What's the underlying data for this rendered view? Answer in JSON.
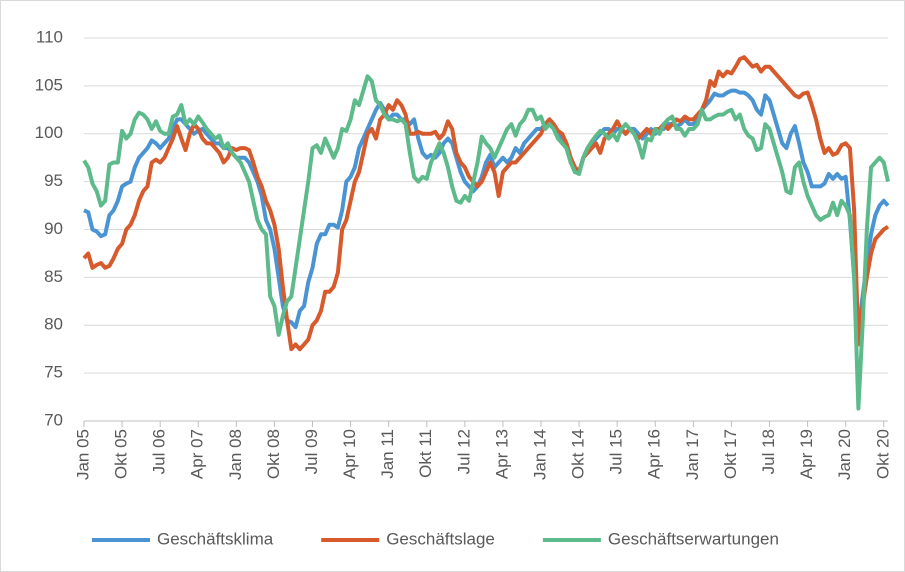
{
  "chart_data": {
    "type": "line",
    "categories": [
      "Jan 05",
      null,
      null,
      null,
      null,
      null,
      null,
      null,
      null,
      "Okt 05",
      null,
      null,
      null,
      null,
      null,
      null,
      null,
      null,
      "Jul 06",
      null,
      null,
      null,
      null,
      null,
      null,
      null,
      null,
      "Apr 07",
      null,
      null,
      null,
      null,
      null,
      null,
      null,
      null,
      "Jan 08",
      null,
      null,
      null,
      null,
      null,
      null,
      null,
      null,
      "Okt 08",
      null,
      null,
      null,
      null,
      null,
      null,
      null,
      null,
      "Jul 09",
      null,
      null,
      null,
      null,
      null,
      null,
      null,
      null,
      "Apr 10",
      null,
      null,
      null,
      null,
      null,
      null,
      null,
      null,
      "Jan 11",
      null,
      null,
      null,
      null,
      null,
      null,
      null,
      null,
      "Okt 11",
      null,
      null,
      null,
      null,
      null,
      null,
      null,
      null,
      "Jul 12",
      null,
      null,
      null,
      null,
      null,
      null,
      null,
      null,
      "Apr 13",
      null,
      null,
      null,
      null,
      null,
      null,
      null,
      null,
      "Jan 14",
      null,
      null,
      null,
      null,
      null,
      null,
      null,
      null,
      "Okt 14",
      null,
      null,
      null,
      null,
      null,
      null,
      null,
      null,
      "Jul 15",
      null,
      null,
      null,
      null,
      null,
      null,
      null,
      null,
      "Apr 16",
      null,
      null,
      null,
      null,
      null,
      null,
      null,
      null,
      "Jan 17",
      null,
      null,
      null,
      null,
      null,
      null,
      null,
      null,
      "Okt 17",
      null,
      null,
      null,
      null,
      null,
      null,
      null,
      null,
      "Jul 18",
      null,
      null,
      null,
      null,
      null,
      null,
      null,
      null,
      "Apr 19",
      null,
      null,
      null,
      null,
      null,
      null,
      null,
      null,
      "Jan 20",
      null,
      null,
      null,
      null,
      null,
      null,
      null,
      null,
      "Okt 20",
      null
    ],
    "series": [
      {
        "name": "Geschäftsklima",
        "color": "#4b94d3",
        "values": [
          92,
          91.8,
          90,
          89.8,
          89.3,
          89.5,
          91.5,
          92,
          93,
          94.5,
          94.8,
          95,
          96.5,
          97.5,
          98,
          98.5,
          99.3,
          99,
          98.5,
          99,
          99.5,
          100.5,
          101.5,
          101.5,
          101,
          100.5,
          100,
          100.3,
          100.5,
          100,
          99.5,
          99,
          99,
          98.5,
          98.5,
          98,
          97.5,
          97.5,
          97.5,
          97,
          96,
          95,
          93.5,
          91,
          90,
          88,
          85,
          82,
          80.5,
          80.3,
          79.8,
          81.5,
          82,
          84.5,
          86,
          88.5,
          89.5,
          89.5,
          90.5,
          90.5,
          90.2,
          92,
          95,
          95.5,
          96.5,
          98.5,
          99.5,
          100.5,
          101.5,
          102.5,
          103.2,
          102.5,
          101.5,
          102,
          102,
          101.5,
          101.5,
          101,
          101.5,
          99.5,
          98,
          97.5,
          97.8,
          97.5,
          98,
          99,
          99.5,
          99,
          97.5,
          96,
          95,
          94.5,
          94,
          94.5,
          95.5,
          97,
          97.8,
          96.5,
          97,
          97.5,
          97,
          97.5,
          98.5,
          98,
          99,
          99.5,
          100,
          100.5,
          100.5,
          101,
          101.5,
          101,
          100,
          99.5,
          99,
          97.5,
          96.5,
          96,
          97.5,
          98.5,
          99,
          99.5,
          100,
          100.5,
          100.5,
          100,
          100.5,
          100.5,
          100,
          100.5,
          100.5,
          100,
          99.5,
          100,
          100.5,
          100,
          100.5,
          100.5,
          101,
          101,
          100.8,
          101,
          101.5,
          101,
          101,
          101.5,
          102.5,
          103,
          103.5,
          104.2,
          104,
          104,
          104.3,
          104.5,
          104.5,
          104.3,
          104.3,
          104,
          103.5,
          102.5,
          102,
          104,
          103.5,
          102,
          100.5,
          99,
          98.5,
          100,
          100.8,
          99,
          97,
          96,
          94.5,
          94.5,
          94.5,
          94.8,
          95.8,
          95.3,
          95.8,
          95.3,
          95.5,
          91,
          85,
          79.5,
          83,
          86.5,
          89.5,
          91.5,
          92.5,
          93,
          92.5
        ]
      },
      {
        "name": "Geschäftslage",
        "color": "#d75a2c",
        "values": [
          87,
          87.5,
          86,
          86.3,
          86.5,
          86,
          86.2,
          87,
          88,
          88.5,
          90,
          90.5,
          91.5,
          93,
          94,
          94.5,
          97,
          97.3,
          97,
          97.5,
          98.5,
          99.5,
          100.8,
          99.5,
          98.3,
          100,
          101,
          100.5,
          99.5,
          99,
          99,
          98.5,
          98,
          97,
          97.5,
          98.5,
          98.3,
          98.5,
          98.5,
          98.3,
          97,
          95.5,
          94.5,
          93,
          92,
          90.5,
          88,
          84,
          80.5,
          77.5,
          78,
          77.5,
          78,
          78.5,
          80,
          80.5,
          81.5,
          83.5,
          83.5,
          84,
          85.5,
          90,
          91,
          93,
          95,
          96,
          98,
          100,
          100.5,
          99.5,
          101.5,
          102,
          103,
          102.5,
          103.5,
          103,
          102,
          100,
          100,
          100.2,
          100,
          100,
          100,
          100.2,
          99.5,
          100,
          101.3,
          100.5,
          98,
          97,
          96.5,
          95.5,
          95,
          94.5,
          95,
          96,
          97,
          96,
          93.5,
          96,
          96.5,
          97,
          97,
          97.5,
          98,
          98.5,
          99,
          99.5,
          100,
          101,
          101.5,
          101,
          100.3,
          100,
          99,
          97.5,
          96.5,
          96,
          97.5,
          98,
          98.5,
          99,
          98,
          99.5,
          100,
          100.5,
          101.3,
          100.5,
          100,
          100.5,
          100,
          99.5,
          100,
          100.5,
          100,
          100.5,
          100.5,
          101,
          100.5,
          101,
          101.5,
          101.3,
          101.8,
          101.5,
          101.5,
          102,
          102.5,
          103.5,
          105.5,
          105,
          106.5,
          106,
          106.5,
          106.3,
          107,
          107.8,
          108,
          107.5,
          107,
          107.2,
          106.5,
          107,
          107,
          106.5,
          106,
          105.5,
          105,
          104.5,
          104,
          103.8,
          104.2,
          104.3,
          103,
          101.5,
          99.5,
          98,
          98.5,
          97.8,
          98,
          98.8,
          99,
          98.5,
          92,
          78,
          82,
          85,
          87.5,
          89,
          89.5,
          90,
          90.3
        ]
      },
      {
        "name": "Geschäftserwartungen",
        "color": "#5dba8a",
        "values": [
          97.2,
          96.5,
          94.8,
          94,
          92.5,
          93,
          96.8,
          97,
          97,
          100.3,
          99.5,
          100,
          101.5,
          102.2,
          102,
          101.5,
          100.5,
          101.3,
          100.3,
          100,
          100,
          101.8,
          102,
          103,
          101,
          101.5,
          101,
          101.8,
          101.2,
          100.5,
          100,
          99.5,
          99.8,
          98.5,
          99,
          98,
          97.5,
          97,
          96,
          95,
          93,
          91,
          90,
          89.5,
          83,
          82,
          79,
          81,
          82.5,
          83,
          86,
          89,
          92,
          95,
          98.5,
          98.8,
          98,
          99.5,
          98.5,
          97.5,
          98.5,
          100.5,
          100.3,
          101.5,
          103.5,
          103,
          104.5,
          106,
          105.5,
          103.5,
          103,
          102,
          101.5,
          101.5,
          101.3,
          101.5,
          101,
          98,
          95.5,
          95,
          95.5,
          95.3,
          97,
          98,
          99,
          98,
          96.5,
          94.5,
          93,
          92.8,
          93.5,
          93,
          95,
          97,
          99.7,
          99,
          98.5,
          97.5,
          98.5,
          99.5,
          100.5,
          101,
          99.8,
          101,
          101.5,
          102.5,
          102.5,
          101.5,
          101.8,
          100.5,
          101,
          100.5,
          99.5,
          99,
          98.5,
          97,
          96,
          95.8,
          97.5,
          98.5,
          99.2,
          99.8,
          100.3,
          100,
          99.5,
          100,
          99.3,
          100.5,
          101,
          100.5,
          100,
          99,
          97.5,
          99.5,
          99.3,
          100.5,
          100,
          101,
          101.5,
          101.8,
          100.5,
          100.5,
          99.8,
          100.5,
          100.5,
          101,
          102.5,
          101.5,
          101.5,
          101.8,
          102,
          102,
          102.3,
          102.5,
          101.5,
          102,
          100.5,
          99.8,
          99.5,
          98.3,
          98.5,
          101,
          100.5,
          99,
          97.5,
          96,
          94,
          93.8,
          96.5,
          97,
          95,
          93.5,
          92.5,
          91.5,
          91,
          91.3,
          91.5,
          92.8,
          91.5,
          93,
          92.5,
          91.5,
          85,
          71.3,
          80,
          90,
          96.5,
          97,
          97.5,
          97,
          95
        ]
      }
    ],
    "ylim": [
      70,
      110
    ],
    "yticks": [
      70,
      75,
      80,
      85,
      90,
      95,
      100,
      105,
      110
    ],
    "grid": true,
    "legend": "bottom"
  }
}
